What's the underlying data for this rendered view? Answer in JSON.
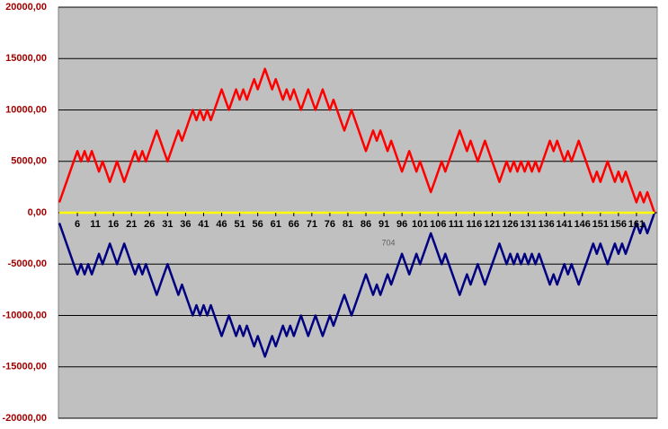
{
  "chart_data": {
    "type": "line",
    "annotation": "704",
    "categories": [
      null,
      null,
      null,
      null,
      null,
      "6",
      null,
      null,
      null,
      null,
      "11",
      null,
      null,
      null,
      null,
      "16",
      null,
      null,
      null,
      null,
      "21",
      null,
      null,
      null,
      null,
      "26",
      null,
      null,
      null,
      null,
      "31",
      null,
      null,
      null,
      null,
      "36",
      null,
      null,
      null,
      null,
      "41",
      null,
      null,
      null,
      null,
      "46",
      null,
      null,
      null,
      null,
      "51",
      null,
      null,
      null,
      null,
      "56",
      null,
      null,
      null,
      null,
      "61",
      null,
      null,
      null,
      null,
      "66",
      null,
      null,
      null,
      null,
      "71",
      null,
      null,
      null,
      null,
      "76",
      null,
      null,
      null,
      null,
      "81",
      null,
      null,
      null,
      null,
      "86",
      null,
      null,
      null,
      null,
      "91",
      null,
      null,
      null,
      null,
      "96",
      null,
      null,
      null,
      null,
      "101",
      null,
      null,
      null,
      null,
      "106",
      null,
      null,
      null,
      null,
      "111",
      null,
      null,
      null,
      null,
      "116",
      null,
      null,
      null,
      null,
      "121",
      null,
      null,
      null,
      null,
      "126",
      null,
      null,
      null,
      null,
      "131",
      null,
      null,
      null,
      null,
      "136",
      null,
      null,
      null,
      null,
      "141",
      null,
      null,
      null,
      null,
      "146",
      null,
      null,
      null,
      null,
      "151",
      null,
      null,
      null,
      null,
      "156",
      null,
      null,
      null,
      null,
      "161",
      null,
      null,
      null,
      null,
      null
    ],
    "series": [
      {
        "color": "#ff0000",
        "values": [
          1000,
          2000,
          3000,
          4000,
          5000,
          6000,
          5000,
          6000,
          5000,
          6000,
          5000,
          4000,
          5000,
          4000,
          3000,
          4000,
          5000,
          4000,
          3000,
          4000,
          5000,
          6000,
          5000,
          6000,
          5000,
          6000,
          7000,
          8000,
          7000,
          6000,
          5000,
          6000,
          7000,
          8000,
          7000,
          8000,
          9000,
          10000,
          9000,
          10000,
          9000,
          10000,
          9000,
          10000,
          11000,
          12000,
          11000,
          10000,
          11000,
          12000,
          11000,
          12000,
          11000,
          12000,
          13000,
          12000,
          13000,
          14000,
          13000,
          12000,
          13000,
          12000,
          11000,
          12000,
          11000,
          12000,
          11000,
          10000,
          11000,
          12000,
          11000,
          10000,
          11000,
          12000,
          11000,
          10000,
          11000,
          10000,
          9000,
          8000,
          9000,
          10000,
          9000,
          8000,
          7000,
          6000,
          7000,
          8000,
          7000,
          8000,
          7000,
          6000,
          7000,
          6000,
          5000,
          4000,
          5000,
          6000,
          5000,
          4000,
          5000,
          4000,
          3000,
          2000,
          3000,
          4000,
          5000,
          4000,
          5000,
          6000,
          7000,
          8000,
          7000,
          6000,
          7000,
          6000,
          5000,
          6000,
          7000,
          6000,
          5000,
          4000,
          3000,
          4000,
          5000,
          4000,
          5000,
          4000,
          5000,
          4000,
          5000,
          4000,
          5000,
          4000,
          5000,
          6000,
          7000,
          6000,
          7000,
          6000,
          5000,
          6000,
          5000,
          6000,
          7000,
          6000,
          5000,
          4000,
          3000,
          4000,
          3000,
          4000,
          5000,
          4000,
          3000,
          4000,
          3000,
          4000,
          3000,
          2000,
          1000,
          2000,
          1000,
          2000,
          1000,
          0
        ]
      },
      {
        "color": "#000080",
        "values": [
          -1000,
          -2000,
          -3000,
          -4000,
          -5000,
          -6000,
          -5000,
          -6000,
          -5000,
          -6000,
          -5000,
          -4000,
          -5000,
          -4000,
          -3000,
          -4000,
          -5000,
          -4000,
          -3000,
          -4000,
          -5000,
          -6000,
          -5000,
          -6000,
          -5000,
          -6000,
          -7000,
          -8000,
          -7000,
          -6000,
          -5000,
          -6000,
          -7000,
          -8000,
          -7000,
          -8000,
          -9000,
          -10000,
          -9000,
          -10000,
          -9000,
          -10000,
          -9000,
          -10000,
          -11000,
          -12000,
          -11000,
          -10000,
          -11000,
          -12000,
          -11000,
          -12000,
          -11000,
          -12000,
          -13000,
          -12000,
          -13000,
          -14000,
          -13000,
          -12000,
          -13000,
          -12000,
          -11000,
          -12000,
          -11000,
          -12000,
          -11000,
          -10000,
          -11000,
          -12000,
          -11000,
          -10000,
          -11000,
          -12000,
          -11000,
          -10000,
          -11000,
          -10000,
          -9000,
          -8000,
          -9000,
          -10000,
          -9000,
          -8000,
          -7000,
          -6000,
          -7000,
          -8000,
          -7000,
          -8000,
          -7000,
          -6000,
          -7000,
          -6000,
          -5000,
          -4000,
          -5000,
          -6000,
          -5000,
          -4000,
          -5000,
          -4000,
          -3000,
          -2000,
          -3000,
          -4000,
          -5000,
          -4000,
          -5000,
          -6000,
          -7000,
          -8000,
          -7000,
          -6000,
          -7000,
          -6000,
          -5000,
          -6000,
          -7000,
          -6000,
          -5000,
          -4000,
          -3000,
          -4000,
          -5000,
          -4000,
          -5000,
          -4000,
          -5000,
          -4000,
          -5000,
          -4000,
          -5000,
          -4000,
          -5000,
          -6000,
          -7000,
          -6000,
          -7000,
          -6000,
          -5000,
          -6000,
          -5000,
          -6000,
          -7000,
          -6000,
          -5000,
          -4000,
          -3000,
          -4000,
          -3000,
          -4000,
          -5000,
          -4000,
          -3000,
          -4000,
          -3000,
          -4000,
          -3000,
          -2000,
          -1000,
          -2000,
          -1000,
          -2000,
          -1000,
          0
        ]
      },
      {
        "color": "#ffff00",
        "values": [
          0,
          0,
          0,
          0,
          0,
          0,
          0,
          0,
          0,
          0,
          0,
          0,
          0,
          0,
          0,
          0,
          0,
          0,
          0,
          0,
          0,
          0,
          0,
          0,
          0,
          0,
          0,
          0,
          0,
          0,
          0,
          0,
          0,
          0,
          0,
          0,
          0,
          0,
          0,
          0,
          0,
          0,
          0,
          0,
          0,
          0,
          0,
          0,
          0,
          0,
          0,
          0,
          0,
          0,
          0,
          0,
          0,
          0,
          0,
          0,
          0,
          0,
          0,
          0,
          0,
          0,
          0,
          0,
          0,
          0,
          0,
          0,
          0,
          0,
          0,
          0,
          0,
          0,
          0,
          0,
          0,
          0,
          0,
          0,
          0,
          0,
          0,
          0,
          0,
          0,
          0,
          0,
          0,
          0,
          0,
          0,
          0,
          0,
          0,
          0,
          0,
          0,
          0,
          0,
          0,
          0,
          0,
          0,
          0,
          0,
          0,
          0,
          0,
          0,
          0,
          0,
          0,
          0,
          0,
          0,
          0,
          0,
          0,
          0,
          0,
          0,
          0,
          0,
          0,
          0,
          0,
          0,
          0,
          0,
          0,
          0,
          0,
          0,
          0,
          0,
          0,
          0,
          0,
          0,
          0,
          0,
          0,
          0,
          0,
          0,
          0,
          0,
          0,
          0,
          0,
          0,
          0,
          0,
          0,
          0,
          0,
          0,
          0,
          0,
          0,
          0
        ]
      }
    ],
    "ylim": [
      -20000,
      20000
    ],
    "yticks": [
      {
        "value": -20000,
        "label": "-20000,00"
      },
      {
        "value": -15000,
        "label": "-15000,00"
      },
      {
        "value": -10000,
        "label": "-10000,00"
      },
      {
        "value": -5000,
        "label": "-5000,00"
      },
      {
        "value": 0,
        "label": "0,00"
      },
      {
        "value": 5000,
        "label": "5000,00"
      },
      {
        "value": 10000,
        "label": "10000,00"
      },
      {
        "value": 15000,
        "label": "15000,00"
      },
      {
        "value": 20000,
        "label": "20000,00"
      }
    ],
    "grid": true
  }
}
